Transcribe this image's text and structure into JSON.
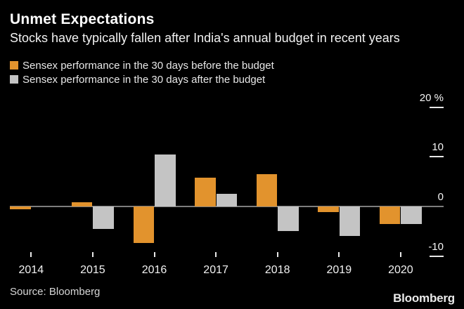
{
  "chart_data": {
    "type": "bar",
    "title": "Unmet Expectations",
    "subtitle": "Stocks have typically fallen after India's annual budget in recent years",
    "categories": [
      "2014",
      "2015",
      "2016",
      "2017",
      "2018",
      "2019",
      "2020"
    ],
    "series": [
      {
        "name": "Sensex performance in the 30 days before the budget",
        "color": "#e2932d",
        "values": [
          -0.5,
          0.8,
          -7.4,
          5.8,
          6.5,
          -1.2,
          -3.5
        ]
      },
      {
        "name": "Sensex performance in the 30 days after the budget",
        "color": "#c4c4c4",
        "values": [
          0.0,
          -4.5,
          10.4,
          2.6,
          -4.9,
          -5.9,
          -3.6
        ]
      }
    ],
    "unit": "%",
    "yticks": [
      20,
      10,
      0,
      -10
    ],
    "ytick_labels": [
      "20 %",
      "10",
      "0",
      "-10"
    ],
    "ylim": [
      -12,
      22
    ],
    "legend_position": "top-left",
    "grid": "zero-line-only"
  },
  "footer": {
    "source": "Source: Bloomberg",
    "logo": "Bloomberg"
  }
}
